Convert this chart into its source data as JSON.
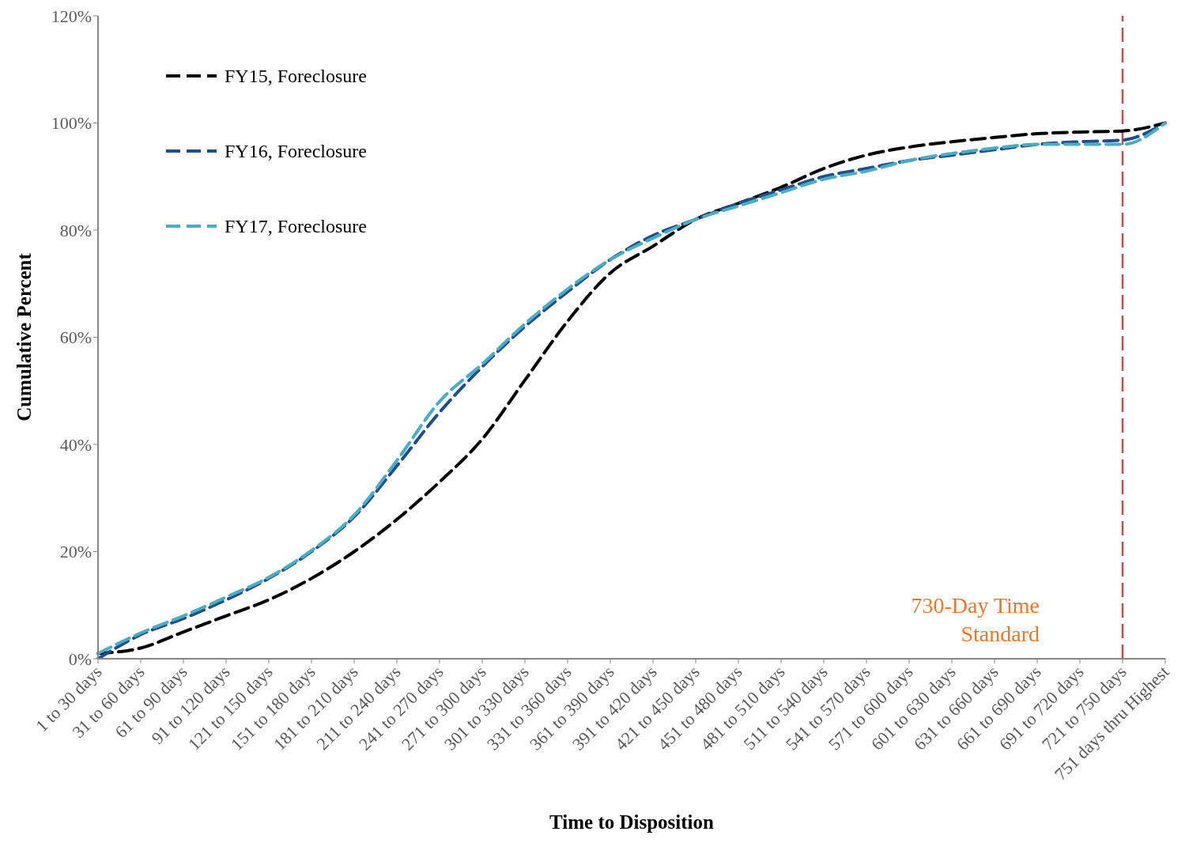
{
  "chart_data": {
    "type": "line",
    "xlabel": "Time to Disposition",
    "ylabel": "Cumulative Percent",
    "categories": [
      "1 to 30 days",
      "31 to 60 days",
      "61 to 90 days",
      "91 to 120 days",
      "121 to 150 days",
      "151 to 180 days",
      "181 to 210 days",
      "211 to 240 days",
      "241 to 270 days",
      "271 to 300 days",
      "301 to 330 days",
      "331 to 360 days",
      "361 to 390 days",
      "391 to 420 days",
      "421 to 450 days",
      "451 to 480 days",
      "481 to 510 days",
      "511 to 540 days",
      "541 to 570 days",
      "571 to 600 days",
      "601 to 630 days",
      "631 to 660 days",
      "661 to 690 days",
      "691 to 720 days",
      "721 to 750 days",
      "751 days thru Highest"
    ],
    "series": [
      {
        "name": "FY15, Foreclosure",
        "color": "#000000",
        "line_style": "dashed",
        "values": [
          1,
          2,
          5,
          8,
          11,
          15,
          20,
          26,
          33,
          41,
          52,
          63,
          72,
          77,
          82,
          85,
          88,
          91.5,
          94,
          95.5,
          96.5,
          97.3,
          98,
          98.3,
          98.5,
          100
        ]
      },
      {
        "name": "FY16, Foreclosure",
        "color": "#1f4e89",
        "line_style": "dashed",
        "values": [
          0,
          4.5,
          7.5,
          11,
          15,
          20,
          26.5,
          36,
          46,
          54.5,
          62,
          68.5,
          74.5,
          79,
          82,
          85,
          87.5,
          90,
          91.5,
          93,
          94,
          95,
          96,
          96.5,
          96.8,
          100
        ]
      },
      {
        "name": "FY17, Foreclosure",
        "color": "#4bacc6",
        "line_style": "dashed",
        "values": [
          1,
          4.8,
          8,
          11.5,
          15.2,
          20.2,
          26.8,
          37,
          48,
          55,
          62.5,
          69,
          74.5,
          78.5,
          82,
          84.5,
          87,
          89.5,
          91,
          93,
          94.3,
          95.3,
          96,
          96,
          96,
          100
        ]
      }
    ],
    "ylim": [
      0,
      120
    ],
    "yticks": [
      {
        "value": 0,
        "label": "0%"
      },
      {
        "value": 20,
        "label": "20%"
      },
      {
        "value": 40,
        "label": "40%"
      },
      {
        "value": 60,
        "label": "60%"
      },
      {
        "value": 80,
        "label": "80%"
      },
      {
        "value": 100,
        "label": "100%"
      },
      {
        "value": 120,
        "label": "120%"
      }
    ],
    "ref_lines": [
      {
        "axis": "x",
        "value": "721 to 750 days",
        "label": "730-Day Time Standard",
        "color": "#c0504d",
        "line_style": "dashed"
      }
    ],
    "grid": false,
    "legend": "top left",
    "marker": "none"
  }
}
